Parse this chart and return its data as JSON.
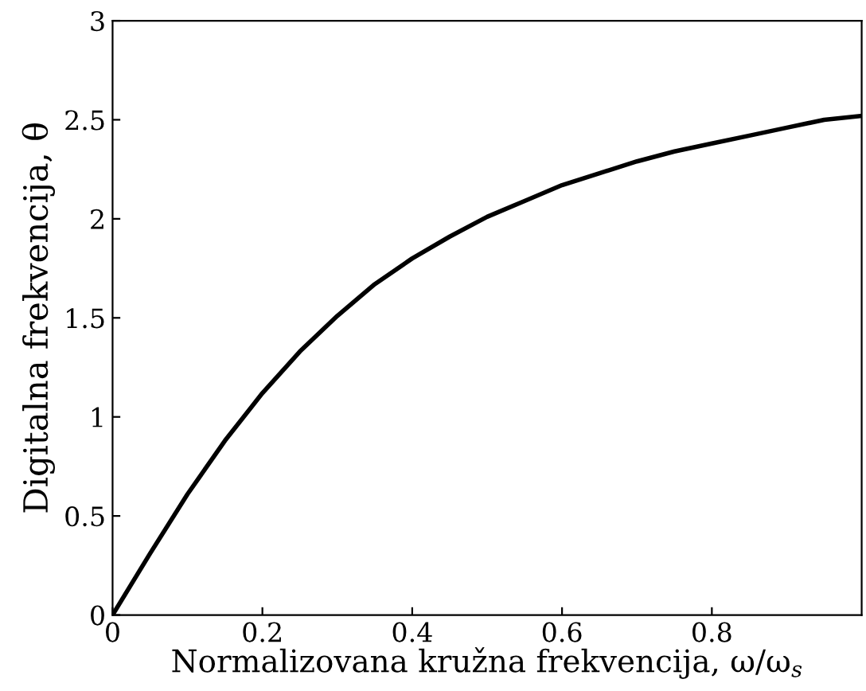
{
  "chart_data": {
    "type": "line",
    "xlabel": "Normalizovana kružna frekvencija, ω/ω$_{s}$",
    "ylabel": "Digitalna frekvencija, θ",
    "x": [
      0,
      0.05,
      0.1,
      0.15,
      0.2,
      0.25,
      0.3,
      0.35,
      0.4,
      0.45,
      0.5,
      0.55,
      0.6,
      0.65,
      0.7,
      0.75,
      0.8,
      0.85,
      0.9,
      0.95,
      1.0
    ],
    "series": [
      {
        "color": "#000000",
        "values": [
          0,
          0.31,
          0.61,
          0.88,
          1.12,
          1.33,
          1.51,
          1.67,
          1.8,
          1.91,
          2.01,
          2.09,
          2.17,
          2.23,
          2.29,
          2.34,
          2.38,
          2.42,
          2.46,
          2.5,
          2.52
        ]
      }
    ],
    "xlim": [
      0,
      1
    ],
    "xticks": [
      0,
      0.2,
      0.4,
      0.6,
      0.8
    ],
    "ylim": [
      0,
      3
    ],
    "yticks": [
      0,
      0.5,
      1,
      1.5,
      2,
      2.5,
      3
    ],
    "grid": false,
    "legend": false,
    "marker": "none",
    "line_style": "solid"
  }
}
